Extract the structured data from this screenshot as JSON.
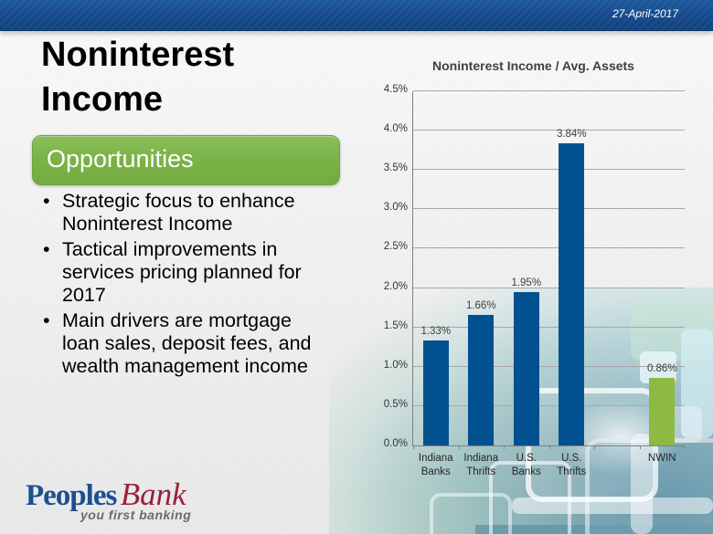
{
  "slide": {
    "date": "27-April-2017",
    "title": "Noninterest Income",
    "banner": "Opportunities",
    "bullets": [
      "Strategic focus to enhance Noninterest Income",
      "Tactical improvements in services pricing planned for 2017",
      "Main drivers are mortgage loan sales, deposit fees, and wealth management income"
    ]
  },
  "logo": {
    "name_primary": "Peoples",
    "name_secondary": "Bank",
    "tagline": "you first banking"
  },
  "colors": {
    "header_blue": "#15498b",
    "banner_green": "#7cb347",
    "bar_blue": "#01508f",
    "bar_green": "#8cba43",
    "logo_blue": "#1d4f91",
    "logo_red": "#9b1f3a"
  },
  "chart_data": {
    "type": "bar",
    "title": "Noninterest Income / Avg. Assets",
    "categories": [
      "Indiana\nBanks",
      "Indiana\nThrifts",
      "U.S.\nBanks",
      "U.S.\nThrifts",
      "",
      "NWIN"
    ],
    "values": [
      1.33,
      1.66,
      1.95,
      3.84,
      null,
      0.86
    ],
    "value_labels": [
      "1.33%",
      "1.66%",
      "1.95%",
      "3.84%",
      "",
      "0.86%"
    ],
    "bar_colors": [
      "#01508f",
      "#01508f",
      "#01508f",
      "#01508f",
      null,
      "#8cba43"
    ],
    "xlabel": "",
    "ylabel": "",
    "ylim": [
      0,
      4.5
    ],
    "ytick_step": 0.5,
    "ytick_labels": [
      "0.0%",
      "0.5%",
      "1.0%",
      "1.5%",
      "2.0%",
      "2.5%",
      "3.0%",
      "3.5%",
      "4.0%",
      "4.5%"
    ],
    "grid": true,
    "legend": false
  }
}
